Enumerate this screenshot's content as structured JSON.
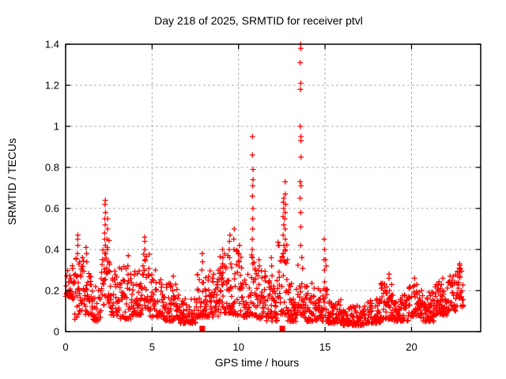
{
  "window": {
    "background": "#ffffff"
  },
  "chart_data": {
    "type": "scatter",
    "title": "Day 218 of 2025, SRMTID for receiver ptvl",
    "xlabel": "GPS time / hours",
    "ylabel": "SRMTID / TECUs",
    "xlim": [
      0,
      24
    ],
    "ylim": [
      0,
      1.4
    ],
    "xticks": [
      0,
      5,
      10,
      15,
      20
    ],
    "xtick_labels": [
      "0",
      "5",
      "10",
      "15",
      "20"
    ],
    "yticks": [
      0,
      0.2,
      0.4,
      0.6,
      0.8,
      1,
      1.2,
      1.4
    ],
    "ytick_labels": [
      "0",
      "0.2",
      "0.4",
      "0.6",
      "0.8",
      "1",
      "1.2",
      "1.4"
    ],
    "grid": true,
    "legend": "none",
    "colors": {
      "points": "#ff0000",
      "flags": "#ff0000",
      "grid": "#b0b0b0",
      "axis": "#000000",
      "text": "#000000"
    },
    "series": [
      {
        "name": "srmtid-scatter",
        "marker": "plus",
        "generation": {
          "seed": 7,
          "points_per_hour": 50,
          "pair_probability": 0.4,
          "power": 1.7,
          "x_jitter": 0.06
        },
        "band_segments": [
          [
            0.0,
            0.35,
            0.17,
            0.33
          ],
          [
            0.35,
            0.75,
            0.06,
            0.36
          ],
          [
            0.75,
            1.05,
            0.1,
            0.4
          ],
          [
            1.05,
            1.55,
            0.08,
            0.3
          ],
          [
            1.55,
            2.05,
            0.05,
            0.26
          ],
          [
            2.05,
            2.55,
            0.13,
            0.48
          ],
          [
            2.55,
            3.1,
            0.08,
            0.3
          ],
          [
            3.1,
            3.8,
            0.06,
            0.33
          ],
          [
            3.8,
            4.4,
            0.08,
            0.3
          ],
          [
            4.4,
            4.85,
            0.1,
            0.38
          ],
          [
            4.85,
            5.6,
            0.07,
            0.28
          ],
          [
            5.6,
            6.6,
            0.05,
            0.24
          ],
          [
            6.6,
            7.6,
            0.04,
            0.18
          ],
          [
            7.6,
            8.3,
            0.07,
            0.28
          ],
          [
            8.3,
            8.9,
            0.07,
            0.3
          ],
          [
            8.9,
            9.6,
            0.09,
            0.38
          ],
          [
            9.6,
            10.2,
            0.08,
            0.4
          ],
          [
            10.2,
            10.65,
            0.07,
            0.28
          ],
          [
            10.65,
            11.0,
            0.08,
            0.38
          ],
          [
            11.0,
            11.6,
            0.06,
            0.32
          ],
          [
            11.6,
            12.25,
            0.05,
            0.28
          ],
          [
            12.25,
            12.85,
            0.08,
            0.45
          ],
          [
            12.85,
            13.35,
            0.05,
            0.25
          ],
          [
            13.35,
            13.75,
            0.08,
            0.4
          ],
          [
            13.75,
            14.55,
            0.05,
            0.24
          ],
          [
            14.55,
            15.15,
            0.05,
            0.28
          ],
          [
            15.15,
            16.0,
            0.04,
            0.16
          ],
          [
            16.0,
            17.3,
            0.03,
            0.13
          ],
          [
            17.3,
            18.2,
            0.04,
            0.16
          ],
          [
            18.2,
            19.0,
            0.06,
            0.24
          ],
          [
            19.0,
            19.8,
            0.05,
            0.18
          ],
          [
            19.8,
            20.6,
            0.07,
            0.24
          ],
          [
            20.6,
            21.3,
            0.05,
            0.2
          ],
          [
            21.3,
            22.1,
            0.08,
            0.25
          ],
          [
            22.1,
            22.6,
            0.1,
            0.28
          ],
          [
            22.6,
            23.0,
            0.12,
            0.33
          ]
        ],
        "spike_columns": [
          [
            0.7,
            [
              0.38,
              0.42,
              0.45,
              0.47
            ]
          ],
          [
            1.2,
            [
              0.34,
              0.38,
              0.41
            ]
          ],
          [
            2.28,
            [
              0.38,
              0.42,
              0.45,
              0.48,
              0.52,
              0.55,
              0.58,
              0.62,
              0.64
            ]
          ],
          [
            2.42,
            [
              0.4,
              0.45,
              0.5,
              0.55
            ]
          ],
          [
            3.6,
            [
              0.32,
              0.37
            ]
          ],
          [
            4.6,
            [
              0.35,
              0.4,
              0.44,
              0.46
            ]
          ],
          [
            5.2,
            [
              0.3
            ]
          ],
          [
            6.2,
            [
              0.27
            ]
          ],
          [
            7.9,
            [
              0.3,
              0.34,
              0.38
            ]
          ],
          [
            9.1,
            [
              0.33,
              0.36,
              0.4
            ]
          ],
          [
            9.48,
            [
              0.36,
              0.4,
              0.44,
              0.47
            ]
          ],
          [
            9.75,
            [
              0.4,
              0.45,
              0.5
            ]
          ],
          [
            10.05,
            [
              0.34,
              0.38,
              0.42
            ]
          ],
          [
            10.82,
            [
              0.33,
              0.36,
              0.4,
              0.45,
              0.5,
              0.55,
              0.6,
              0.66,
              0.71,
              0.74,
              0.79,
              0.86,
              0.95
            ]
          ],
          [
            11.2,
            [
              0.32,
              0.35
            ]
          ],
          [
            11.9,
            [
              0.32,
              0.36
            ]
          ],
          [
            12.6,
            [
              0.38,
              0.42,
              0.47,
              0.52,
              0.56,
              0.6,
              0.63,
              0.65
            ]
          ],
          [
            12.7,
            [
              0.4,
              0.45,
              0.5,
              0.55,
              0.58,
              0.62,
              0.67,
              0.73
            ]
          ],
          [
            13.58,
            [
              0.42,
              0.51,
              0.58,
              0.65,
              0.71,
              0.73,
              0.85,
              0.93,
              0.95,
              1.0,
              1.18,
              1.21,
              1.31,
              1.38,
              1.4
            ]
          ],
          [
            14.95,
            [
              0.3,
              0.35,
              0.4,
              0.45
            ]
          ],
          [
            15.05,
            [
              0.32,
              0.35
            ]
          ],
          [
            18.7,
            [
              0.26,
              0.28
            ]
          ],
          [
            20.2,
            [
              0.26
            ]
          ],
          [
            21.8,
            [
              0.26
            ]
          ],
          [
            22.75,
            [
              0.29,
              0.31,
              0.33
            ]
          ]
        ]
      },
      {
        "name": "event-flags",
        "marker": "filled-square",
        "points": [
          [
            7.9,
            0.015
          ],
          [
            12.53,
            0.015
          ]
        ]
      }
    ]
  }
}
